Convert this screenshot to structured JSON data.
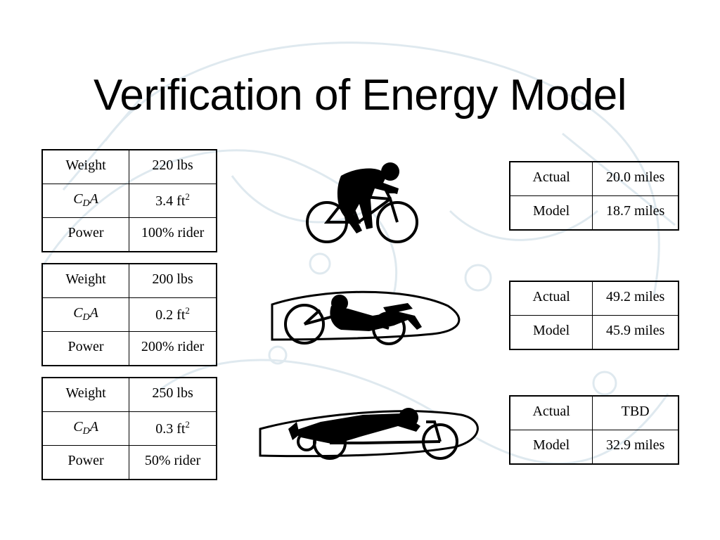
{
  "slide": {
    "title": "Verification of Energy Model"
  },
  "spec_tables": [
    {
      "weight_label": "Weight",
      "weight_value": "220 lbs",
      "cda_label_c": "C",
      "cda_label_sub": "D",
      "cda_label_a": "A",
      "cda_value_num": "3.4 ft",
      "cda_value_exp": "2",
      "power_label": "Power",
      "power_value": "100% rider"
    },
    {
      "weight_label": "Weight",
      "weight_value": "200 lbs",
      "cda_label_c": "C",
      "cda_label_sub": "D",
      "cda_label_a": "A",
      "cda_value_num": "0.2 ft",
      "cda_value_exp": "2",
      "power_label": "Power",
      "power_value": "200% rider"
    },
    {
      "weight_label": "Weight",
      "weight_value": "250 lbs",
      "cda_label_c": "C",
      "cda_label_sub": "D",
      "cda_label_a": "A",
      "cda_value_num": "0.3 ft",
      "cda_value_exp": "2",
      "power_label": "Power",
      "power_value": "50% rider"
    }
  ],
  "result_tables": [
    {
      "actual_label": "Actual",
      "actual_value": "20.0 miles",
      "model_label": "Model",
      "model_value": "18.7 miles"
    },
    {
      "actual_label": "Actual",
      "actual_value": "49.2 miles",
      "model_label": "Model",
      "model_value": "45.9 miles"
    },
    {
      "actual_label": "Actual",
      "actual_value": "TBD",
      "model_label": "Model",
      "model_value": "32.9 miles"
    }
  ],
  "icons": {
    "vehicle_1": "upright-bicycle-rider-icon",
    "vehicle_2": "recumbent-streamliner-icon",
    "vehicle_3": "prone-streamliner-icon"
  },
  "colors": {
    "background": "#ffffff",
    "background_art": "#dde8ee",
    "text": "#000000"
  }
}
